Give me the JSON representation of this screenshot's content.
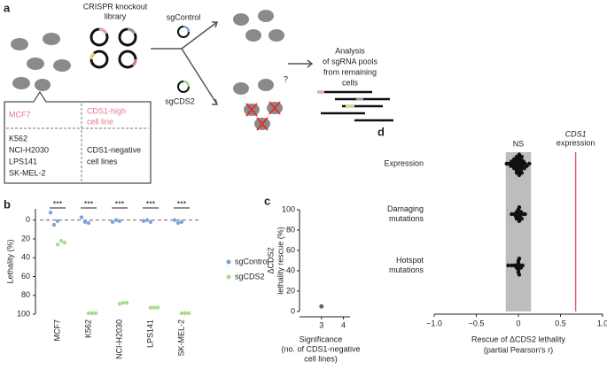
{
  "panel_a": {
    "label": "a",
    "library": [
      "CRISPR knockout",
      "library"
    ],
    "control": "sgControl",
    "knockout": "sgCDS2",
    "analysis": [
      "Analysis",
      "of sgRNA pools",
      "from remaining",
      "cells"
    ],
    "question": "?",
    "box": {
      "high_line": "MCF7",
      "high_desc": [
        "CDS1-high",
        "cell line"
      ],
      "negative_lines": [
        "K562",
        "NCI-H2030",
        "LPS141",
        "SK-MEL-2"
      ],
      "negative_desc": [
        "CDS1-negative",
        "cell lines"
      ]
    }
  },
  "chart_data": [
    {
      "type": "strip",
      "panel": "b",
      "categories": [
        "MCF7",
        "K562",
        "NCI-H2030",
        "LPS141",
        "SK-MEL-2"
      ],
      "highlight_index": 0,
      "highlight_color": "#e8768a",
      "ylabel": "Lethality (%)",
      "ylim": [
        -12,
        100
      ],
      "inverted": true,
      "yticks": [
        0,
        20,
        40,
        60,
        80,
        100
      ],
      "reference_line": 0,
      "annotations": [
        "***",
        "***",
        "***",
        "***",
        "***"
      ],
      "series": [
        {
          "name": "sgControl",
          "color": "#7aa6dc",
          "values": [
            [
              -8,
              5,
              1
            ],
            [
              -3,
              2,
              3
            ],
            [
              2,
              0,
              1
            ],
            [
              1,
              0,
              2
            ],
            [
              0,
              3,
              2
            ]
          ]
        },
        {
          "name": "sgCDS2",
          "color": "#a6dc8a",
          "values": [
            [
              26,
              22,
              24
            ],
            [
              99,
              99,
              99
            ],
            [
              89,
              88,
              88
            ],
            [
              93,
              93,
              93
            ],
            [
              99,
              99,
              99
            ]
          ]
        }
      ]
    },
    {
      "type": "scatter",
      "panel": "c",
      "x": [
        3
      ],
      "y": [
        5
      ],
      "color": "#666",
      "xlim": [
        2,
        4.3
      ],
      "ylim": [
        0,
        100
      ],
      "xticks": [
        3,
        4
      ],
      "yticks": [
        0,
        20,
        40,
        60,
        80,
        100
      ],
      "xlabel": [
        "Significance",
        "(no. of CDS1-negative",
        "cell lines)"
      ],
      "ylabel": [
        "ΔCDS2",
        "lethality rescue (%)"
      ]
    },
    {
      "type": "beeswarm",
      "panel": "d",
      "categories": [
        [
          "Expression"
        ],
        [
          "Damaging",
          "mutations"
        ],
        [
          "Hotspot",
          "mutations"
        ]
      ],
      "values": [
        [
          -0.14,
          -0.11,
          -0.09,
          -0.08,
          -0.07,
          -0.06,
          -0.06,
          -0.05,
          -0.05,
          -0.04,
          -0.04,
          -0.03,
          -0.03,
          -0.03,
          -0.02,
          -0.02,
          -0.02,
          -0.01,
          -0.01,
          -0.01,
          0,
          0,
          0,
          0,
          0.01,
          0.01,
          0.01,
          0.02,
          0.02,
          0.02,
          0.03,
          0.03,
          0.03,
          0.04,
          0.04,
          0.05,
          0.05,
          0.06,
          0.07,
          0.08,
          0.1,
          0.13
        ],
        [
          -0.08,
          -0.05,
          -0.04,
          -0.03,
          -0.02,
          -0.02,
          -0.01,
          -0.01,
          0,
          0,
          0,
          0.01,
          0.01,
          0.02,
          0.02,
          0.03,
          0.04,
          0.06,
          0.08
        ],
        [
          -0.12,
          -0.08,
          -0.05,
          -0.03,
          -0.02,
          -0.01,
          -0.01,
          0,
          0,
          0,
          0,
          0.01,
          0.01,
          0.02,
          0.03,
          0.05
        ]
      ],
      "color": "#111",
      "xlim": [
        -1,
        1
      ],
      "xticks": [
        {
          "value": -1,
          "label": "−1.0"
        },
        {
          "value": -0.5,
          "label": "−0.5"
        },
        0,
        {
          "value": 0.5,
          "label": "0.5"
        },
        {
          "value": 1,
          "label": "1.0"
        }
      ],
      "xlabel": [
        "Rescue of ΔCDS2 lethality",
        "(partial Pearson's r)"
      ],
      "ns_band": [
        -0.15,
        0.15
      ],
      "ns_label": "NS",
      "ns_color": "#bdbdbd",
      "reference": {
        "value": 0.68,
        "label": [
          "CDS1",
          "expression"
        ],
        "color": "#e06070"
      }
    }
  ]
}
